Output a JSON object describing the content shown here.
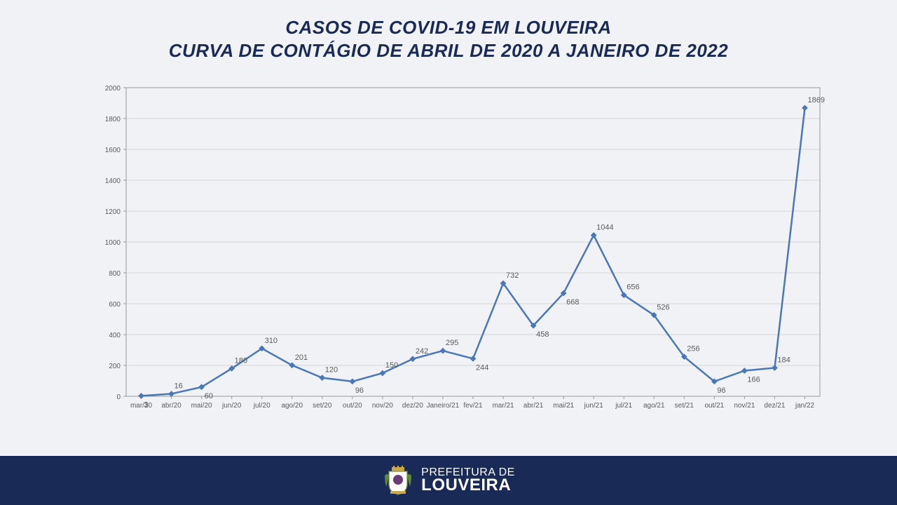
{
  "title": {
    "line1": "CASOS DE COVID-19 EM LOUVEIRA",
    "line2": "CURVA DE CONTÁGIO DE ABRIL DE 2020 A JANEIRO DE 2022",
    "color": "#1a2a56",
    "fontsize": 26,
    "fontweight": 900,
    "italic": true
  },
  "chart": {
    "type": "line",
    "background_color": "#f0f2f5",
    "plot_border_color": "#9a9a9a",
    "grid_color": "#b8b8b8",
    "series_color": "#4a77b8",
    "line_width": 2.5,
    "marker": "diamond",
    "marker_size": 7,
    "label_font_color": "#5a5a5a",
    "label_fontsize": 11,
    "axis_label_fontsize": 10,
    "ylim": [
      0,
      2000
    ],
    "ytick_step": 200,
    "categories": [
      "mar/20",
      "abr/20",
      "mai/20",
      "jun/20",
      "jul/20",
      "ago/20",
      "set/20",
      "out/20",
      "nov/20",
      "dez/20",
      "Janeiro/21",
      "fev/21",
      "mar/21",
      "abr/21",
      "mai/21",
      "jun/21",
      "jul/21",
      "ago/21",
      "set/21",
      "out/21",
      "nov/21",
      "dez/21",
      "jan/22"
    ],
    "values": [
      3,
      16,
      60,
      180,
      310,
      201,
      120,
      96,
      150,
      242,
      295,
      244,
      732,
      458,
      668,
      1044,
      656,
      526,
      256,
      96,
      166,
      184,
      1869
    ],
    "label_positions": [
      "below",
      "above",
      "below",
      "above",
      "above",
      "above",
      "above",
      "below",
      "above",
      "above",
      "above",
      "below",
      "above",
      "below",
      "below",
      "above",
      "above",
      "above",
      "above",
      "below",
      "below",
      "above",
      "above"
    ]
  },
  "footer": {
    "line1": "PREFEITURA DE",
    "line2": "LOUVEIRA",
    "background_color": "#1a2a56",
    "text_color": "#ffffff"
  }
}
